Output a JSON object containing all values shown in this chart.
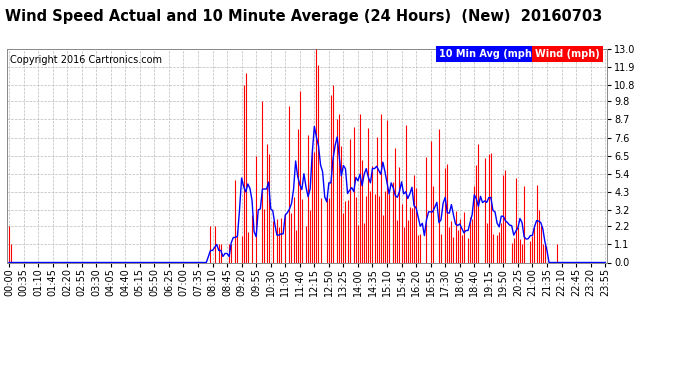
{
  "title": "Wind Speed Actual and 10 Minute Average (24 Hours)  (New)  20160703",
  "copyright": "Copyright 2016 Cartronics.com",
  "yticks": [
    0.0,
    1.1,
    2.2,
    3.2,
    4.3,
    5.4,
    6.5,
    7.6,
    8.7,
    9.8,
    10.8,
    11.9,
    13.0
  ],
  "ylim": [
    0.0,
    13.0
  ],
  "wind_color": "#FF0000",
  "avg_color": "#0000FF",
  "background_color": "#FFFFFF",
  "grid_color": "#BBBBBB",
  "legend_avg_label": "10 Min Avg (mph)",
  "legend_wind_label": "Wind (mph)",
  "legend_avg_bg": "#0000FF",
  "legend_wind_bg": "#FF0000",
  "title_fontsize": 10.5,
  "copyright_fontsize": 7,
  "tick_fontsize": 7,
  "fig_width": 6.9,
  "fig_height": 3.75,
  "dpi": 100
}
